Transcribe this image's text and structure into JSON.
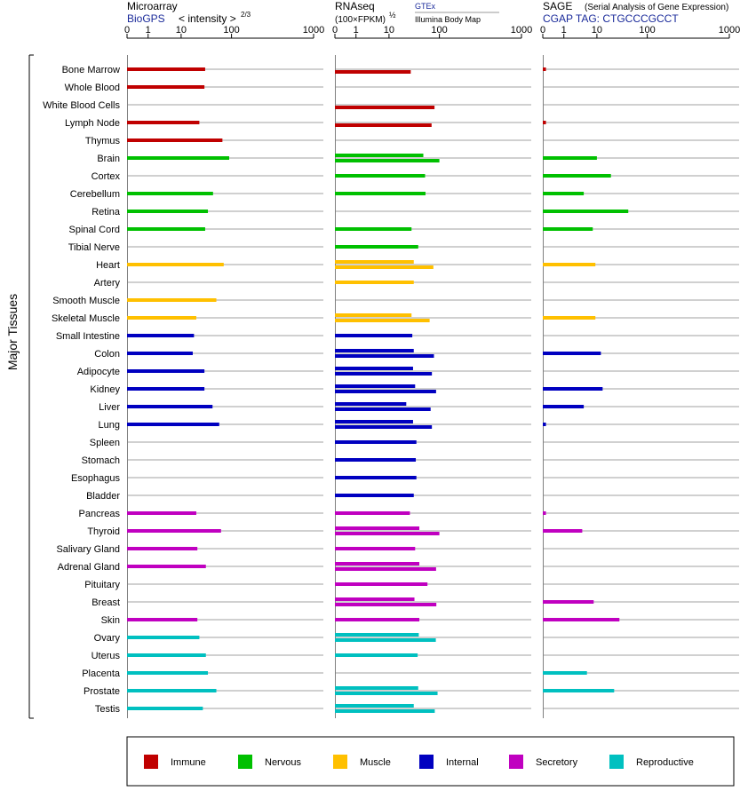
{
  "chart_data": {
    "type": "bar",
    "y_axis_label": "Major Tissues",
    "tissues": [
      "Bone Marrow",
      "Whole Blood",
      "White Blood Cells",
      "Lymph Node",
      "Thymus",
      "Brain",
      "Cortex",
      "Cerebellum",
      "Retina",
      "Spinal Cord",
      "Tibial Nerve",
      "Heart",
      "Artery",
      "Smooth Muscle",
      "Skeletal Muscle",
      "Small Intestine",
      "Colon",
      "Adipocyte",
      "Kidney",
      "Liver",
      "Lung",
      "Spleen",
      "Stomach",
      "Esophagus",
      "Bladder",
      "Pancreas",
      "Thyroid",
      "Salivary Gland",
      "Adrenal Gland",
      "Pituitary",
      "Breast",
      "Skin",
      "Ovary",
      "Uterus",
      "Placenta",
      "Prostate",
      "Testis"
    ],
    "tissue_groups": [
      "Immune",
      "Immune",
      "Immune",
      "Immune",
      "Immune",
      "Nervous",
      "Nervous",
      "Nervous",
      "Nervous",
      "Nervous",
      "Nervous",
      "Muscle",
      "Muscle",
      "Muscle",
      "Muscle",
      "Internal",
      "Internal",
      "Internal",
      "Internal",
      "Internal",
      "Internal",
      "Internal",
      "Internal",
      "Internal",
      "Internal",
      "Secretory",
      "Secretory",
      "Secretory",
      "Secretory",
      "Secretory",
      "Secretory",
      "Secretory",
      "Reproductive",
      "Reproductive",
      "Reproductive",
      "Reproductive",
      "Reproductive"
    ],
    "groups": [
      {
        "name": "Immune",
        "color": "#c00000"
      },
      {
        "name": "Nervous",
        "color": "#00c000"
      },
      {
        "name": "Muscle",
        "color": "#ffc000"
      },
      {
        "name": "Internal",
        "color": "#0000c0"
      },
      {
        "name": "Secretory",
        "color": "#c000c0"
      },
      {
        "name": "Reproductive",
        "color": "#00c0c0"
      }
    ],
    "tick_labels": [
      "0",
      "1",
      "10",
      "100",
      "1000"
    ],
    "panels": [
      {
        "id": "microarray",
        "title": "Microarray",
        "subtitle": "BioGPS",
        "scale_label": "< intensity >",
        "scale_exponent": "2/3",
        "values": [
          [
            30
          ],
          [
            29
          ],
          [],
          [
            23
          ],
          [
            66
          ],
          [
            90
          ],
          [],
          [
            43
          ],
          [
            34
          ],
          [
            30
          ],
          [],
          [
            70
          ],
          [],
          [
            50
          ],
          [
            20
          ],
          [
            18
          ],
          [
            17
          ],
          [
            29
          ],
          [
            29
          ],
          [
            42
          ],
          [
            57
          ],
          [],
          [],
          [],
          [],
          [
            20
          ],
          [
            62
          ],
          [
            21
          ],
          [
            31
          ],
          [],
          [],
          [
            21
          ],
          [
            23
          ],
          [
            31
          ],
          [
            34
          ],
          [
            50
          ],
          [
            27
          ]
        ]
      },
      {
        "id": "rnaseq",
        "title": "RNAseq",
        "scale_label": "(100×FPKM)",
        "scale_exponent": "½",
        "source_1": "GTEx",
        "source_2": "Illumina Body Map",
        "values": [
          [
            null,
            27
          ],
          [],
          [
            null,
            80
          ],
          [
            null,
            70
          ],
          [],
          [
            48,
            100
          ],
          [
            52
          ],
          [
            53
          ],
          [],
          [
            28
          ],
          [
            38
          ],
          [
            31,
            76
          ],
          [
            31
          ],
          [],
          [
            28,
            64
          ],
          [
            29
          ],
          [
            31,
            78
          ],
          [
            30,
            71
          ],
          [
            33,
            86
          ],
          [
            22,
            67
          ],
          [
            30,
            71
          ],
          [
            35
          ],
          [
            34
          ],
          [
            35
          ],
          [
            31
          ],
          [
            26
          ],
          [
            40,
            100
          ],
          [
            33
          ],
          [
            40,
            86
          ],
          [
            58
          ],
          [
            32,
            87
          ],
          [
            40
          ],
          [
            39,
            85
          ],
          [
            37
          ],
          [],
          [
            38,
            92
          ],
          [
            31,
            81
          ]
        ]
      },
      {
        "id": "sage",
        "title": "SAGE",
        "subtitle_note": "(Serial Analysis of Gene Expression)",
        "tag_label": "CGAP  TAG: CTGCCCGCCT",
        "values": [
          [
            0.15
          ],
          [],
          [],
          [
            0.15
          ],
          [],
          [
            10
          ],
          [
            19
          ],
          [
            4
          ],
          [
            42
          ],
          [
            7.5
          ],
          [],
          [
            9
          ],
          [],
          [],
          [
            9
          ],
          [],
          [
            12
          ],
          [],
          [
            13
          ],
          [
            4
          ],
          [
            0.15
          ],
          [],
          [],
          [],
          [],
          [
            0.15
          ],
          [
            3.6
          ],
          [],
          [],
          [],
          [
            8
          ],
          [
            28
          ],
          [],
          [],
          [
            5
          ],
          [
            22
          ],
          []
        ]
      }
    ],
    "legend": [
      "Immune",
      "Nervous",
      "Muscle",
      "Internal",
      "Secretory",
      "Reproductive"
    ]
  }
}
